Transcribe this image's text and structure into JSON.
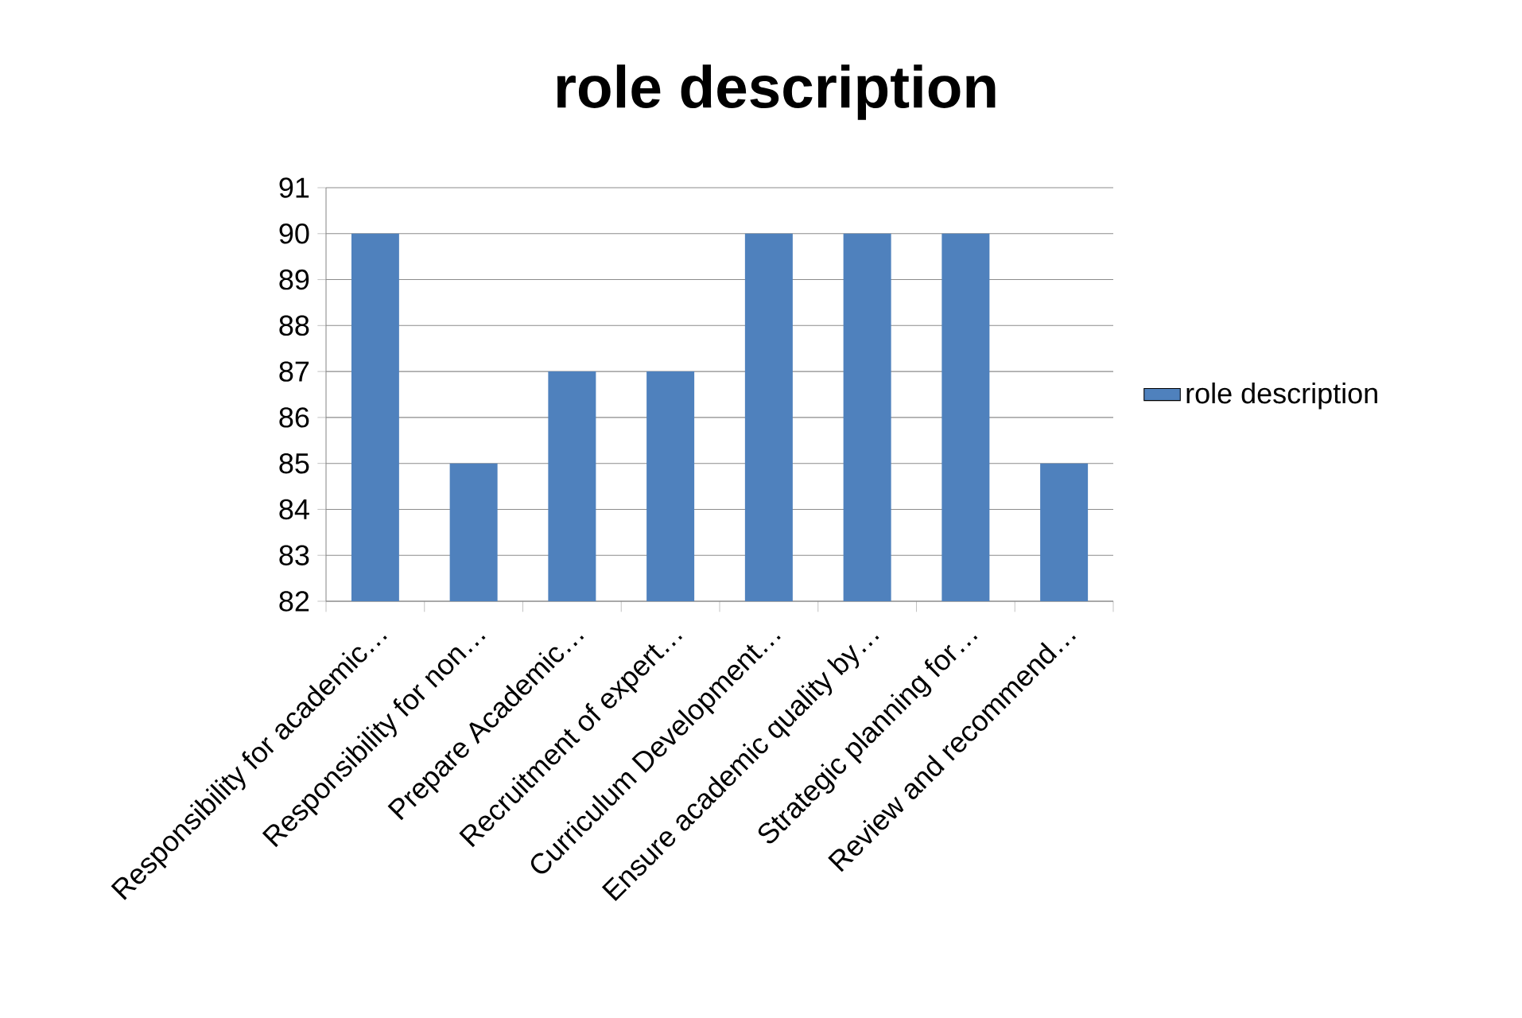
{
  "chart_data": {
    "type": "bar",
    "title": "role description",
    "categories": [
      "Responsibility for academic…",
      "Responsibility for non…",
      "Prepare Academic…",
      "Recruitment of expert…",
      "Curriculum Development…",
      "Ensure academic quality by…",
      "Strategic planning for…",
      "Review and recommend…"
    ],
    "series": [
      {
        "name": "role description",
        "color": "#4f81bd",
        "values": [
          90,
          85,
          87,
          87,
          90,
          90,
          90,
          85
        ]
      }
    ],
    "ylim": [
      82,
      91
    ],
    "yticks": [
      82,
      83,
      84,
      85,
      86,
      87,
      88,
      89,
      90,
      91
    ],
    "grid": "y",
    "legend": "right"
  }
}
